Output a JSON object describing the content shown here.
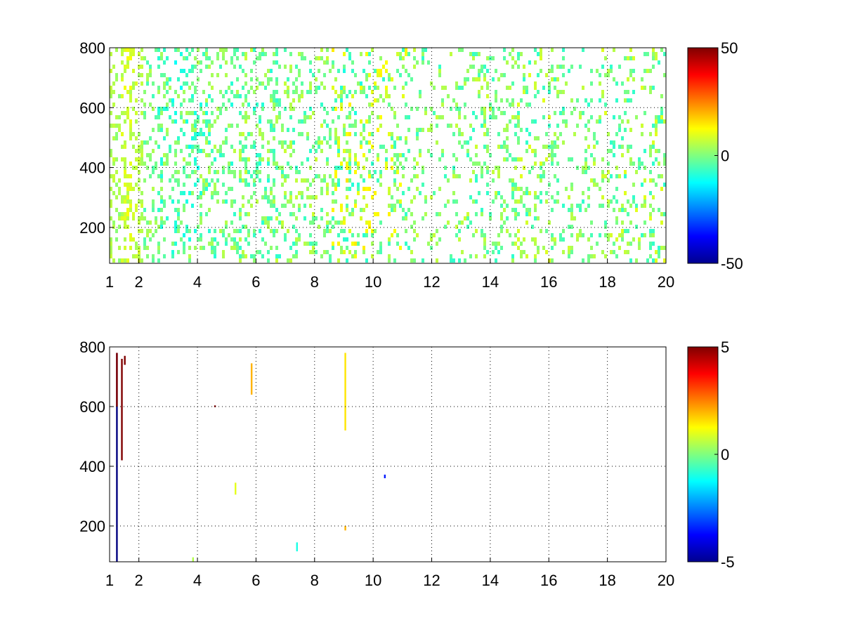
{
  "chart_data": [
    {
      "type": "heatmap",
      "title": "",
      "xlabel": "",
      "ylabel": "",
      "xlim": [
        1,
        20
      ],
      "ylim": [
        80,
        800
      ],
      "xticks": [
        1,
        2,
        4,
        6,
        8,
        10,
        12,
        14,
        16,
        18,
        20
      ],
      "xtick_labels": [
        "1",
        "2",
        "4",
        "6",
        "8",
        "10",
        "12",
        "14",
        "16",
        "18",
        "20"
      ],
      "yticks": [
        200,
        400,
        600,
        800
      ],
      "ytick_labels": [
        "200",
        "400",
        "600",
        "800"
      ],
      "grid": true,
      "colormap": "jet",
      "colorbar": {
        "min": -50,
        "max": 50,
        "ticks": [
          -50,
          0,
          50
        ],
        "tick_labels": [
          "-50",
          "0",
          "50"
        ]
      },
      "description_of_values": "dense scattered cells, mostly in the range about -15 to +15 (cyan/green/yellow); few isolated extremes near x=1.5 and x=9",
      "columns": [
        {
          "x": 1.05,
          "density": 0.65,
          "vmin": 2,
          "vmax": 8
        },
        {
          "x": 1.2,
          "density": 0.55,
          "vmin": 0,
          "vmax": 6
        },
        {
          "x": 1.4,
          "density": 0.75,
          "vmin": 4,
          "vmax": 10
        },
        {
          "x": 1.55,
          "density": 0.7,
          "vmin": 4,
          "vmax": 12
        },
        {
          "x": 1.9,
          "density": 0.6,
          "vmin": 3,
          "vmax": 9
        },
        {
          "x": 2.3,
          "density": 0.45,
          "vmin": -6,
          "vmax": 6
        },
        {
          "x": 2.8,
          "density": 0.5,
          "vmin": -10,
          "vmax": 5
        },
        {
          "x": 3.2,
          "density": 0.45,
          "vmin": -12,
          "vmax": 4
        },
        {
          "x": 3.7,
          "density": 0.55,
          "vmin": -12,
          "vmax": 6
        },
        {
          "x": 4.4,
          "density": 0.5,
          "vmin": -10,
          "vmax": 6
        },
        {
          "x": 5.0,
          "density": 0.45,
          "vmin": -10,
          "vmax": 6
        },
        {
          "x": 5.5,
          "density": 0.5,
          "vmin": -8,
          "vmax": 8
        },
        {
          "x": 6.2,
          "density": 0.45,
          "vmin": -10,
          "vmax": 6
        },
        {
          "x": 7.0,
          "density": 0.4,
          "vmin": -8,
          "vmax": 8
        },
        {
          "x": 8.0,
          "density": 0.4,
          "vmin": -8,
          "vmax": 8
        },
        {
          "x": 9.0,
          "density": 0.5,
          "vmin": -10,
          "vmax": 15
        },
        {
          "x": 10.3,
          "density": 0.35,
          "vmin": -8,
          "vmax": 14
        },
        {
          "x": 12.0,
          "density": 0.3,
          "vmin": -8,
          "vmax": 8
        },
        {
          "x": 14.0,
          "density": 0.35,
          "vmin": -8,
          "vmax": 8
        },
        {
          "x": 15.5,
          "density": 0.4,
          "vmin": -8,
          "vmax": 10
        },
        {
          "x": 17.0,
          "density": 0.3,
          "vmin": -8,
          "vmax": 8
        },
        {
          "x": 18.5,
          "density": 0.35,
          "vmin": -8,
          "vmax": 10
        },
        {
          "x": 19.8,
          "density": 0.4,
          "vmin": -8,
          "vmax": 10
        }
      ]
    },
    {
      "type": "heatmap",
      "title": "",
      "xlabel": "",
      "ylabel": "",
      "xlim": [
        1,
        20
      ],
      "ylim": [
        80,
        800
      ],
      "xticks": [
        1,
        2,
        4,
        6,
        8,
        10,
        12,
        14,
        16,
        18,
        20
      ],
      "xtick_labels": [
        "1",
        "2",
        "4",
        "6",
        "8",
        "10",
        "12",
        "14",
        "16",
        "18",
        "20"
      ],
      "yticks": [
        200,
        400,
        600,
        800
      ],
      "ytick_labels": [
        "200",
        "400",
        "600",
        "800"
      ],
      "grid": true,
      "colormap": "jet",
      "colorbar": {
        "min": -5,
        "max": 5,
        "ticks": [
          -5,
          0,
          5
        ],
        "tick_labels": [
          "-5",
          "0",
          "5"
        ]
      },
      "streaks": [
        {
          "x": 1.25,
          "y0": 80,
          "y1": 780,
          "value": -5
        },
        {
          "x": 1.25,
          "y0": 600,
          "y1": 780,
          "value": 5
        },
        {
          "x": 1.42,
          "y0": 420,
          "y1": 760,
          "value": 5
        },
        {
          "x": 1.52,
          "y0": 740,
          "y1": 770,
          "value": 5
        },
        {
          "x": 4.6,
          "y0": 598,
          "y1": 604,
          "value": 5
        },
        {
          "x": 5.3,
          "y0": 305,
          "y1": 345,
          "value": 1
        },
        {
          "x": 5.85,
          "y0": 640,
          "y1": 745,
          "value": 2
        },
        {
          "x": 7.4,
          "y0": 115,
          "y1": 145,
          "value": -1
        },
        {
          "x": 9.05,
          "y0": 520,
          "y1": 780,
          "value": 1.5
        },
        {
          "x": 9.05,
          "y0": 185,
          "y1": 200,
          "value": 2
        },
        {
          "x": 10.4,
          "y0": 360,
          "y1": 372,
          "value": -3.5
        },
        {
          "x": 3.85,
          "y0": 80,
          "y1": 95,
          "value": 0.5
        }
      ]
    }
  ]
}
